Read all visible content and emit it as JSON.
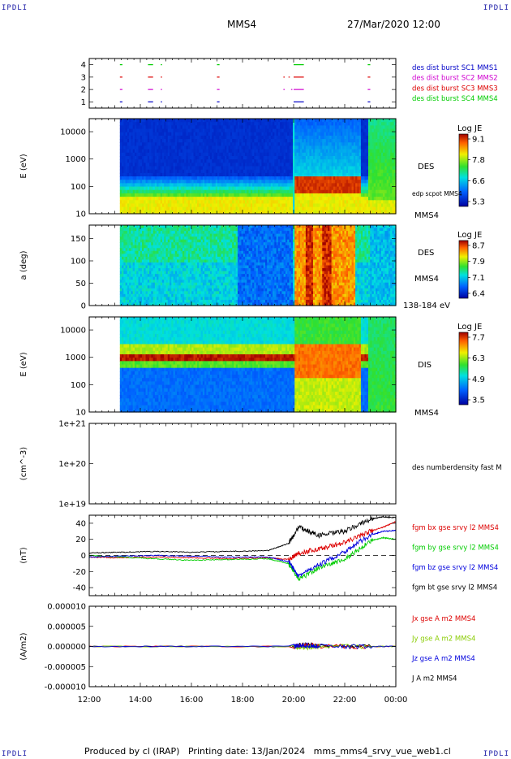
{
  "header": {
    "corner_tl": "IPDLI",
    "corner_tr": "IPDLI",
    "corner_bl": "IPDLI",
    "corner_br": "IPDLI",
    "spacecraft": "MMS4",
    "datetime": "27/Mar/2020 12:00"
  },
  "footer": {
    "produced_by": "Produced by cl (IRAP)",
    "printing_date": "Printing date: 13/Jan/2024",
    "filename": "mms_mms4_srvy_vue_web1.cl"
  },
  "colors": {
    "mms1": "#0000c8",
    "mms2": "#d000d0",
    "mms3": "#dd0000",
    "mms4": "#00cc00",
    "black": "#000000"
  },
  "time_axis": {
    "ticks": [
      "12:00",
      "14:00",
      "16:00",
      "18:00",
      "20:00",
      "22:00",
      "00:00"
    ],
    "start_hour": 12,
    "end_hour": 24
  },
  "chart_data": [
    {
      "type": "scatter",
      "panel": "burst",
      "ylim": [
        0.5,
        4.5
      ],
      "y_ticks": [
        "1",
        "2",
        "3",
        "4"
      ],
      "legend": [
        "des dist burst SC1 MMS1",
        "des dist burst SC2 MMS2",
        "des dist burst SC3 MMS3",
        "des dist burst SC4 MMS4"
      ],
      "series": [
        {
          "name": "des dist burst SC1 MMS1",
          "y": 1,
          "segments": [
            [
              13.2,
              13.3
            ],
            [
              14.3,
              14.5
            ],
            [
              14.8,
              14.85
            ],
            [
              17.0,
              17.1
            ],
            [
              20.0,
              20.4
            ],
            [
              22.9,
              23.0
            ]
          ]
        },
        {
          "name": "des dist burst SC2 MMS2",
          "y": 2,
          "segments": [
            [
              13.2,
              13.3
            ],
            [
              14.3,
              14.5
            ],
            [
              14.8,
              14.85
            ],
            [
              17.0,
              17.1
            ],
            [
              19.6,
              19.65
            ],
            [
              19.9,
              19.95
            ],
            [
              20.0,
              20.4
            ],
            [
              22.9,
              23.0
            ]
          ]
        },
        {
          "name": "des dist burst SC3 MMS3",
          "y": 3,
          "segments": [
            [
              13.2,
              13.3
            ],
            [
              14.3,
              14.5
            ],
            [
              14.8,
              14.85
            ],
            [
              17.0,
              17.1
            ],
            [
              19.6,
              19.65
            ],
            [
              19.8,
              19.85
            ],
            [
              20.0,
              20.4
            ],
            [
              22.9,
              23.0
            ]
          ]
        },
        {
          "name": "des dist burst SC4 MMS4",
          "y": 4,
          "segments": [
            [
              13.2,
              13.3
            ],
            [
              14.3,
              14.5
            ],
            [
              14.8,
              14.85
            ],
            [
              17.0,
              17.1
            ],
            [
              20.0,
              20.4
            ],
            [
              22.9,
              23.0
            ]
          ]
        }
      ]
    },
    {
      "type": "heatmap",
      "panel": "des_energy",
      "ylabel": "E (eV)",
      "yscale": "log",
      "ylim": [
        10,
        30000
      ],
      "y_ticks": [
        "10000",
        "1000",
        "100",
        "10"
      ],
      "right_labels": [
        "DES",
        "edp scpot MMS4",
        "MMS4"
      ],
      "colorbar": {
        "title": "Log JE",
        "ticks": [
          "9.1",
          "7.8",
          "6.6",
          "5.3"
        ],
        "min": 5.3,
        "max": 9.1
      }
    },
    {
      "type": "heatmap",
      "panel": "des_pitch",
      "ylabel": "a (deg)",
      "ylim": [
        0,
        180
      ],
      "y_ticks": [
        "150",
        "100",
        "50",
        "0"
      ],
      "right_labels": [
        "DES",
        "MMS4",
        "138-184 eV"
      ],
      "colorbar": {
        "title": "Log JE",
        "ticks": [
          "8.7",
          "7.9",
          "7.1",
          "6.4"
        ],
        "min": 6.4,
        "max": 8.7
      }
    },
    {
      "type": "heatmap",
      "panel": "dis_energy",
      "ylabel": "E (eV)",
      "yscale": "log",
      "ylim": [
        10,
        30000
      ],
      "y_ticks": [
        "10000",
        "1000",
        "100",
        "10"
      ],
      "right_labels": [
        "DIS",
        "MMS4"
      ],
      "colorbar": {
        "title": "Log JE",
        "ticks": [
          "7.7",
          "6.3",
          "4.9",
          "3.5"
        ],
        "min": 3.5,
        "max": 7.7
      }
    },
    {
      "type": "line",
      "panel": "density",
      "ylabel": "(cm^-3)",
      "yscale": "log",
      "y_ticks": [
        "1e+21",
        "1e+20",
        "1e+19"
      ],
      "legend": [
        "des numberdensity fast M"
      ],
      "series": []
    },
    {
      "type": "line",
      "panel": "bfield",
      "ylabel": "(nT)",
      "ylim": [
        -50,
        50
      ],
      "y_ticks": [
        "40",
        "20",
        "0",
        "-20",
        "-40"
      ],
      "legend": [
        "fgm bx gse srvy l2 MMS4",
        "fgm by gse srvy l2 MMS4",
        "fgm bz gse srvy l2 MMS4",
        "fgm bt gse srvy l2 MMS4"
      ],
      "series": [
        {
          "name": "fgm bx gse srvy l2 MMS4",
          "x": [
            12,
            13.2,
            14.5,
            16,
            17.5,
            19,
            19.8,
            20.2,
            21,
            22,
            23,
            23.5,
            24
          ],
          "y": [
            -2,
            -3,
            -2,
            -3,
            -4,
            -3,
            -5,
            3,
            8,
            16,
            30,
            35,
            42
          ]
        },
        {
          "name": "fgm by gse srvy l2 MMS4",
          "x": [
            12,
            13.2,
            14.5,
            16,
            17.5,
            19,
            19.8,
            20.2,
            21,
            22,
            23,
            23.5,
            24
          ],
          "y": [
            0,
            -2,
            -4,
            -6,
            -5,
            -4,
            -10,
            -30,
            -15,
            -5,
            18,
            22,
            20
          ]
        },
        {
          "name": "fgm bz gse srvy l2 MMS4",
          "x": [
            12,
            13.2,
            14.5,
            16,
            17.5,
            19,
            19.8,
            20.2,
            21,
            22,
            23,
            23.5,
            24
          ],
          "y": [
            -2,
            -1,
            0,
            -1,
            -2,
            -2,
            -8,
            -25,
            -12,
            5,
            25,
            30,
            31
          ]
        },
        {
          "name": "fgm bt gse srvy l2 MMS4",
          "x": [
            12,
            13.2,
            14.5,
            16,
            17.5,
            19,
            19.8,
            20.2,
            21,
            22,
            23,
            23.5,
            24
          ],
          "y": [
            3,
            4,
            5,
            4,
            5,
            6,
            15,
            35,
            25,
            30,
            45,
            48,
            47
          ]
        }
      ]
    },
    {
      "type": "line",
      "panel": "current",
      "ylabel": "(A/m2)",
      "ylim": [
        -1e-05,
        1e-05
      ],
      "y_ticks": [
        "0.000010",
        "0.000005",
        "0.000000",
        "-0.000005",
        "-0.000010"
      ],
      "legend": [
        "Jx gse A m2 MMS4",
        "Jy gse A m2 MMS4",
        "Jz gse A m2 MMS4",
        "J A m2 MMS4"
      ],
      "series": [
        {
          "name": "Jx gse A m2 MMS4",
          "x": [
            12,
            20,
            20.5,
            21,
            24
          ],
          "y": [
            0,
            0,
            4e-07,
            0,
            0
          ]
        },
        {
          "name": "Jy gse A m2 MMS4",
          "x": [
            12,
            20,
            20.5,
            21,
            24
          ],
          "y": [
            0,
            0,
            -3e-07,
            0,
            0
          ]
        },
        {
          "name": "Jz gse A m2 MMS4",
          "x": [
            12,
            20,
            20.5,
            21,
            24
          ],
          "y": [
            0,
            0,
            3e-07,
            0,
            0
          ]
        },
        {
          "name": "J A m2 MMS4",
          "x": [
            12,
            20,
            20.5,
            21,
            24
          ],
          "y": [
            0,
            0,
            5e-07,
            0,
            0
          ]
        }
      ]
    }
  ]
}
